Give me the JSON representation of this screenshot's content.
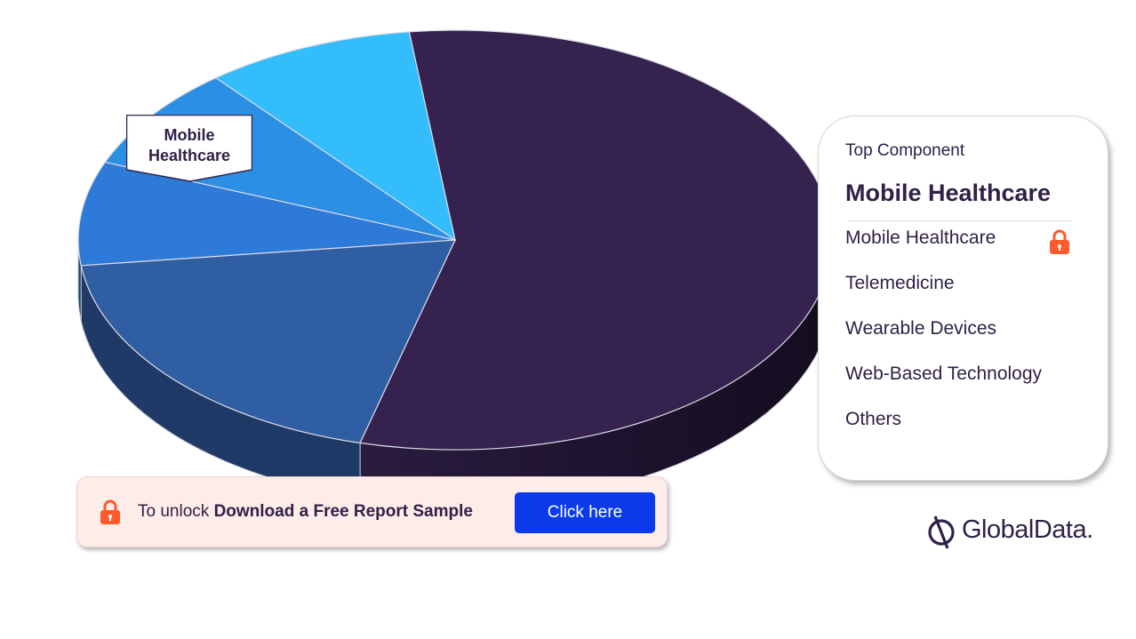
{
  "chart_data": {
    "type": "pie",
    "categories": [
      "Mobile Healthcare",
      "Telemedicine",
      "Wearable Devices",
      "Web-Based Technology",
      "Others"
    ],
    "values": [
      56,
      19,
      8,
      8,
      9
    ],
    "callout": "Mobile\nHealthcare"
  },
  "legend": {
    "subtitle": "Top Component",
    "top_value": "Mobile Healthcare",
    "items": [
      "Mobile Healthcare",
      "Telemedicine",
      "Wearable Devices",
      "Web-Based Technology",
      "Others"
    ]
  },
  "unlock": {
    "prefix": "To unlock",
    "link_text": "Download a Free Report Sample",
    "button_label": "Click here"
  },
  "brand": {
    "name": "GlobalData",
    "suffix": "."
  },
  "colors": {
    "mobile_healthcare": "#35224f",
    "telemedicine": "#305ea2",
    "wearable_devices": "#2d7ad8",
    "web_based_technology": "#2b8fe3",
    "others": "#33bdfa",
    "accent_lock": "#ff5a2a",
    "button": "#0a3aea"
  }
}
